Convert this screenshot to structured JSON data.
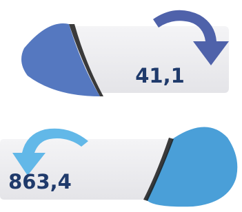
{
  "items": [
    {
      "label": "41,1"
    },
    {
      "label": "863,4"
    }
  ]
}
